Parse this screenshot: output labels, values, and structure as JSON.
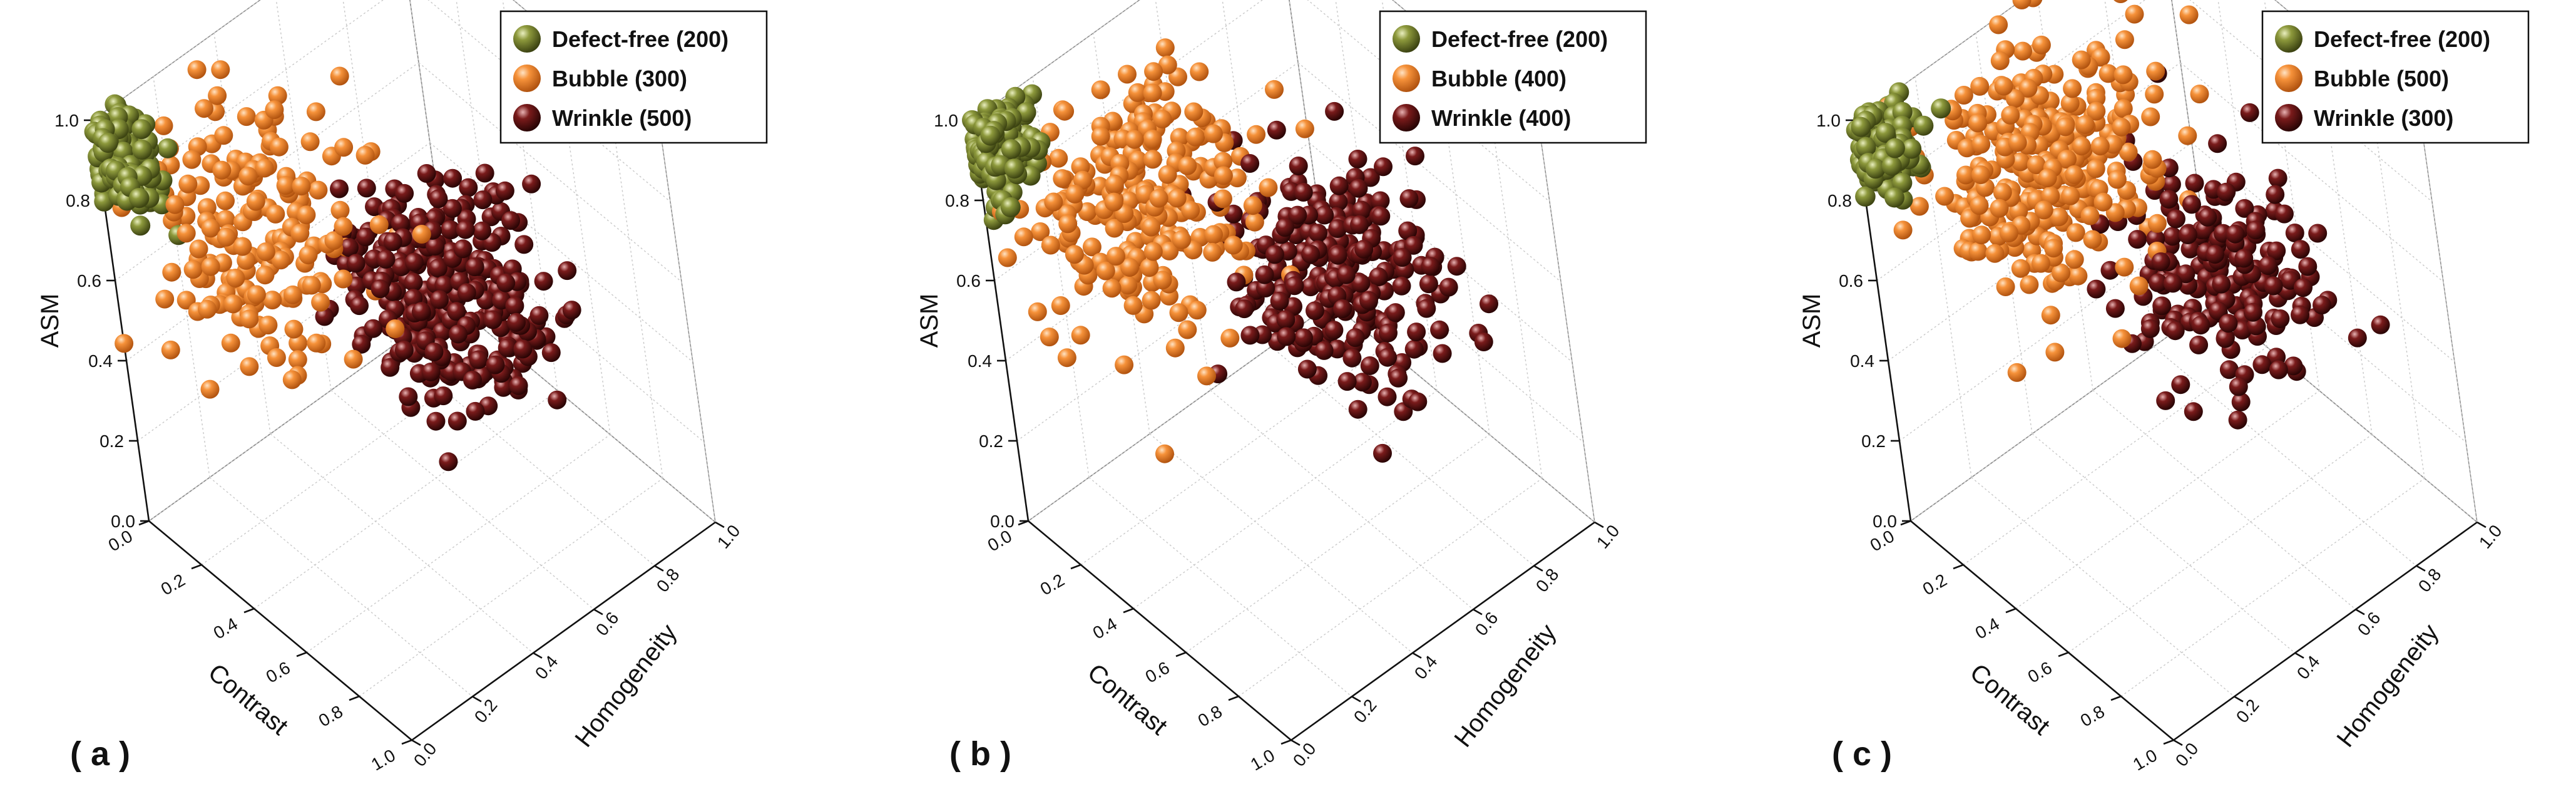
{
  "figure": {
    "panels": [
      {
        "label": "( a )",
        "legend": [
          {
            "name": "Defect-free (200)",
            "color": "#6f7a2b"
          },
          {
            "name": "Bubble (300)",
            "color": "#f08a2c"
          },
          {
            "name": "Wrinkle (500)",
            "color": "#6b1414"
          }
        ]
      },
      {
        "label": "( b )",
        "legend": [
          {
            "name": "Defect-free (200)",
            "color": "#6f7a2b"
          },
          {
            "name": "Bubble (400)",
            "color": "#f08a2c"
          },
          {
            "name": "Wrinkle (400)",
            "color": "#6b1414"
          }
        ]
      },
      {
        "label": "( c )",
        "legend": [
          {
            "name": "Defect-free (200)",
            "color": "#6f7a2b"
          },
          {
            "name": "Bubble (500)",
            "color": "#f08a2c"
          },
          {
            "name": "Wrinkle (300)",
            "color": "#6b1414"
          }
        ]
      }
    ]
  },
  "chart_data": [
    {
      "type": "scatter",
      "dimensions": 3,
      "xlabel": "Contrast",
      "ylabel": "Homogeneity",
      "zlabel": "ASM",
      "xlim": [
        0,
        1
      ],
      "ylim": [
        0,
        1
      ],
      "zlim": [
        0,
        1
      ],
      "xticks": [
        "0.0",
        "0.2",
        "0.4",
        "0.6",
        "0.8",
        "1.0"
      ],
      "yticks": [
        "0.0",
        "0.2",
        "0.4",
        "0.6",
        "0.8",
        "1.0"
      ],
      "zticks": [
        "0.0",
        "0.2",
        "0.4",
        "0.6",
        "0.8",
        "1.0"
      ],
      "grid": true,
      "legend_position": "top-right",
      "series": [
        {
          "name": "Defect-free (200)",
          "count": 200,
          "color": "#6f7a2b",
          "center": {
            "contrast": 0.03,
            "homogeneity": 0.05,
            "asm": 0.9
          },
          "spread": {
            "contrast": 0.05,
            "homogeneity": 0.05,
            "asm": 0.05
          }
        },
        {
          "name": "Bubble (300)",
          "count": 300,
          "color": "#f08a2c",
          "center": {
            "contrast": 0.15,
            "homogeneity": 0.35,
            "asm": 0.62
          },
          "spread": {
            "contrast": 0.12,
            "homogeneity": 0.14,
            "asm": 0.14
          }
        },
        {
          "name": "Wrinkle (500)",
          "count": 500,
          "color": "#6b1414",
          "center": {
            "contrast": 0.35,
            "homogeneity": 0.75,
            "asm": 0.35
          },
          "spread": {
            "contrast": 0.15,
            "homogeneity": 0.12,
            "asm": 0.1
          }
        }
      ]
    },
    {
      "type": "scatter",
      "dimensions": 3,
      "xlabel": "Contrast",
      "ylabel": "Homogeneity",
      "zlabel": "ASM",
      "xlim": [
        0,
        1
      ],
      "ylim": [
        0,
        1
      ],
      "zlim": [
        0,
        1
      ],
      "xticks": [
        "0.0",
        "0.2",
        "0.4",
        "0.6",
        "0.8",
        "1.0"
      ],
      "yticks": [
        "0.0",
        "0.2",
        "0.4",
        "0.6",
        "0.8",
        "1.0"
      ],
      "zticks": [
        "0.0",
        "0.2",
        "0.4",
        "0.6",
        "0.8",
        "1.0"
      ],
      "grid": true,
      "legend_position": "top-right",
      "series": [
        {
          "name": "Defect-free (200)",
          "count": 200,
          "color": "#6f7a2b",
          "center": {
            "contrast": 0.03,
            "homogeneity": 0.05,
            "asm": 0.92
          },
          "spread": {
            "contrast": 0.05,
            "homogeneity": 0.05,
            "asm": 0.05
          }
        },
        {
          "name": "Bubble (400)",
          "count": 400,
          "color": "#f08a2c",
          "center": {
            "contrast": 0.15,
            "homogeneity": 0.38,
            "asm": 0.68
          },
          "spread": {
            "contrast": 0.12,
            "homogeneity": 0.15,
            "asm": 0.14
          }
        },
        {
          "name": "Wrinkle (400)",
          "count": 400,
          "color": "#6b1414",
          "center": {
            "contrast": 0.35,
            "homogeneity": 0.78,
            "asm": 0.38
          },
          "spread": {
            "contrast": 0.15,
            "homogeneity": 0.12,
            "asm": 0.12
          }
        }
      ]
    },
    {
      "type": "scatter",
      "dimensions": 3,
      "xlabel": "Contrast",
      "ylabel": "Homogeneity",
      "zlabel": "ASM",
      "xlim": [
        0,
        1
      ],
      "ylim": [
        0,
        1
      ],
      "zlim": [
        0,
        1
      ],
      "xticks": [
        "0.0",
        "0.2",
        "0.4",
        "0.6",
        "0.8",
        "1.0"
      ],
      "yticks": [
        "0.0",
        "0.2",
        "0.4",
        "0.6",
        "0.8",
        "1.0"
      ],
      "zticks": [
        "0.0",
        "0.2",
        "0.4",
        "0.6",
        "0.8",
        "1.0"
      ],
      "grid": true,
      "legend_position": "top-right",
      "series": [
        {
          "name": "Defect-free (200)",
          "count": 200,
          "color": "#6f7a2b",
          "center": {
            "contrast": 0.03,
            "homogeneity": 0.05,
            "asm": 0.92
          },
          "spread": {
            "contrast": 0.05,
            "homogeneity": 0.05,
            "asm": 0.05
          }
        },
        {
          "name": "Bubble (500)",
          "count": 500,
          "color": "#f08a2c",
          "center": {
            "contrast": 0.12,
            "homogeneity": 0.45,
            "asm": 0.72
          },
          "spread": {
            "contrast": 0.12,
            "homogeneity": 0.16,
            "asm": 0.13
          }
        },
        {
          "name": "Wrinkle (300)",
          "count": 300,
          "color": "#6b1414",
          "center": {
            "contrast": 0.35,
            "homogeneity": 0.8,
            "asm": 0.38
          },
          "spread": {
            "contrast": 0.15,
            "homogeneity": 0.12,
            "asm": 0.12
          }
        }
      ]
    }
  ]
}
